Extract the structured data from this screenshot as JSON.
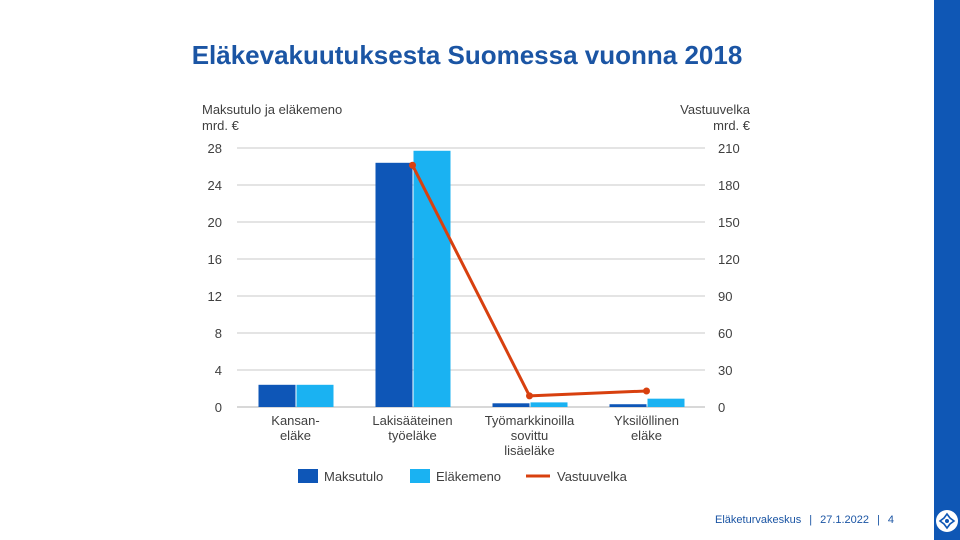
{
  "title": "Eläkevakuutuksesta Suomessa vuonna 2018",
  "footer": {
    "org": "Eläketurvakeskus",
    "date": "27.1.2022",
    "page": "4"
  },
  "colors": {
    "maksutulo": "#0e56b7",
    "elakemeno": "#1ab2f2",
    "vastuuvelka": "#d8400f",
    "grid": "#c8c8c8",
    "text": "#404040",
    "brand": "#0f57b5"
  },
  "chart_data": {
    "type": "bar",
    "title": "Eläkevakuutuksesta Suomessa vuonna 2018",
    "yleft_label_line1": "Maksutulo ja eläkemeno",
    "yleft_label_line2": "mrd. €",
    "yright_label_line1": "Vastuuvelka",
    "yright_label_line2": "mrd. €",
    "ylim_left": [
      0,
      28
    ],
    "ylim_right": [
      0,
      210
    ],
    "yticks_left": [
      0,
      4,
      8,
      12,
      16,
      20,
      24,
      28
    ],
    "yticks_right": [
      0,
      30,
      60,
      90,
      120,
      150,
      180,
      210
    ],
    "categories": [
      [
        "Kansan-",
        "eläke"
      ],
      [
        "Lakisääteinen",
        "työeläke"
      ],
      [
        "Työmarkkinoilla",
        "sovittu",
        "lisäeläke"
      ],
      [
        "Yksilöllinen",
        "eläke"
      ]
    ],
    "series": [
      {
        "name": "Maksutulo",
        "type": "bar",
        "axis": "left",
        "values": [
          2.4,
          26.4,
          0.4,
          0.3
        ]
      },
      {
        "name": "Eläkemeno",
        "type": "bar",
        "axis": "left",
        "values": [
          2.4,
          27.7,
          0.5,
          0.9
        ]
      },
      {
        "name": "Vastuuvelka",
        "type": "line",
        "axis": "right",
        "values": [
          null,
          196,
          9,
          13
        ]
      }
    ],
    "legend": [
      "Maksutulo",
      "Eläkemeno",
      "Vastuuvelka"
    ],
    "legend_position": "bottom",
    "grid": true
  }
}
